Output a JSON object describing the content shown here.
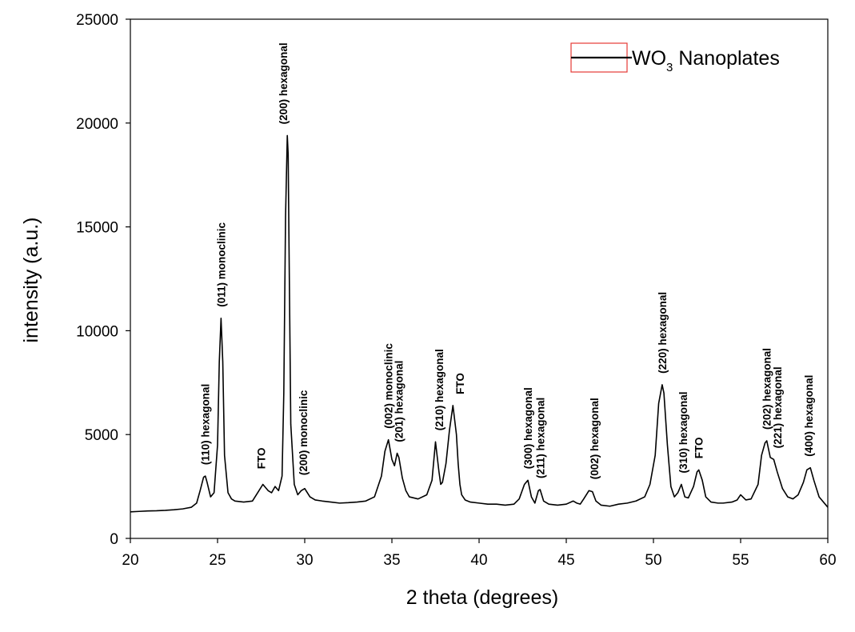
{
  "chart_data": {
    "type": "line",
    "title": "",
    "xlabel": "2 theta (degrees)",
    "ylabel": "intensity (a.u.)",
    "xlim": [
      20,
      60
    ],
    "ylim": [
      0,
      25000
    ],
    "xticks": [
      20,
      25,
      30,
      35,
      40,
      45,
      50,
      55,
      60
    ],
    "yticks": [
      0,
      5000,
      10000,
      15000,
      20000,
      25000
    ],
    "grid": false,
    "legend_position": "top-right",
    "line_color": "#000000",
    "legend_box_color": "#e53935",
    "series": [
      {
        "name": "WO3 Nanoplates",
        "x": [
          20.0,
          20.5,
          21.0,
          21.5,
          22.0,
          22.5,
          23.0,
          23.5,
          23.8,
          24.0,
          24.2,
          24.3,
          24.4,
          24.6,
          24.8,
          25.0,
          25.1,
          25.2,
          25.3,
          25.4,
          25.6,
          25.8,
          26.0,
          26.5,
          27.0,
          27.3,
          27.6,
          27.9,
          28.1,
          28.3,
          28.5,
          28.7,
          28.8,
          28.9,
          29.0,
          29.05,
          29.1,
          29.2,
          29.4,
          29.6,
          29.8,
          30.0,
          30.3,
          30.6,
          31.0,
          31.5,
          32.0,
          32.5,
          33.0,
          33.5,
          34.0,
          34.4,
          34.6,
          34.8,
          35.0,
          35.15,
          35.3,
          35.4,
          35.6,
          35.8,
          36.0,
          36.5,
          37.0,
          37.3,
          37.5,
          37.7,
          37.8,
          37.9,
          38.1,
          38.3,
          38.5,
          38.7,
          38.8,
          38.9,
          39.0,
          39.2,
          39.5,
          40.0,
          40.5,
          41.0,
          41.5,
          42.0,
          42.3,
          42.6,
          42.8,
          43.0,
          43.2,
          43.4,
          43.5,
          43.7,
          44.0,
          44.5,
          45.0,
          45.4,
          45.6,
          45.8,
          46.0,
          46.3,
          46.5,
          46.7,
          47.0,
          47.5,
          48.0,
          48.5,
          49.0,
          49.5,
          49.8,
          50.1,
          50.3,
          50.5,
          50.6,
          50.8,
          51.0,
          51.2,
          51.4,
          51.6,
          51.8,
          52.0,
          52.3,
          52.5,
          52.6,
          52.8,
          53.0,
          53.3,
          53.7,
          54.0,
          54.5,
          54.8,
          55.0,
          55.3,
          55.6,
          56.0,
          56.2,
          56.4,
          56.5,
          56.7,
          56.9,
          57.1,
          57.4,
          57.7,
          58.0,
          58.3,
          58.6,
          58.8,
          59.0,
          59.2,
          59.5,
          60.0
        ],
        "values": [
          1280,
          1300,
          1320,
          1330,
          1350,
          1380,
          1420,
          1500,
          1700,
          2300,
          2950,
          3000,
          2700,
          2000,
          2200,
          4500,
          8500,
          10600,
          8500,
          4000,
          2200,
          1900,
          1800,
          1750,
          1800,
          2200,
          2600,
          2300,
          2200,
          2500,
          2300,
          3000,
          7000,
          15500,
          19400,
          18500,
          14000,
          5500,
          2600,
          2100,
          2300,
          2400,
          2000,
          1850,
          1800,
          1750,
          1700,
          1720,
          1750,
          1800,
          2000,
          3000,
          4200,
          4750,
          3800,
          3500,
          4100,
          3900,
          2900,
          2300,
          2000,
          1900,
          2100,
          2800,
          4650,
          3200,
          2600,
          2700,
          3600,
          5200,
          6400,
          5000,
          3600,
          2600,
          2100,
          1850,
          1750,
          1700,
          1650,
          1650,
          1600,
          1650,
          1900,
          2600,
          2800,
          2000,
          1700,
          2300,
          2350,
          1800,
          1650,
          1600,
          1650,
          1800,
          1700,
          1650,
          1900,
          2300,
          2250,
          1800,
          1600,
          1550,
          1650,
          1700,
          1800,
          2000,
          2600,
          4000,
          6500,
          7400,
          7000,
          4500,
          2500,
          2000,
          2200,
          2600,
          2000,
          1950,
          2500,
          3200,
          3300,
          2800,
          2000,
          1750,
          1700,
          1700,
          1750,
          1850,
          2100,
          1850,
          1900,
          2600,
          4000,
          4600,
          4700,
          3900,
          3800,
          3200,
          2400,
          2000,
          1900,
          2100,
          2700,
          3300,
          3400,
          2800,
          2000,
          1500
        ]
      }
    ],
    "annotations": [
      {
        "text": "(110)  hexagonal",
        "x": 24.3,
        "y": 3000
      },
      {
        "text": "(011) monoclinic",
        "x": 25.2,
        "y": 10600
      },
      {
        "text": "FTO",
        "x": 27.5,
        "y": 2800
      },
      {
        "text": "(200)  hexagonal",
        "x": 28.75,
        "y": 19400
      },
      {
        "text": "(200) monoclinic",
        "x": 29.9,
        "y": 2500
      },
      {
        "text": "(002) monoclinic",
        "x": 34.8,
        "y": 4750
      },
      {
        "text": "(201) hexagonal",
        "x": 35.4,
        "y": 4100
      },
      {
        "text": "(210) hexagonal",
        "x": 37.7,
        "y": 4650
      },
      {
        "text": "FTO",
        "x": 38.9,
        "y": 6400
      },
      {
        "text": "(300) hexagonal",
        "x": 42.8,
        "y": 2800
      },
      {
        "text": "(211) hexagonal",
        "x": 43.5,
        "y": 2350
      },
      {
        "text": "(002) hexagonal",
        "x": 46.6,
        "y": 2300
      },
      {
        "text": "(220) hexagonal",
        "x": 50.5,
        "y": 7400
      },
      {
        "text": "(310) hexagonal",
        "x": 51.7,
        "y": 2600
      },
      {
        "text": "FTO",
        "x": 52.6,
        "y": 3300
      },
      {
        "text": "(202) hexagonal",
        "x": 56.5,
        "y": 4700
      },
      {
        "text": "(221) hexagonal",
        "x": 57.1,
        "y": 3800
      },
      {
        "text": "(400) hexagonal",
        "x": 58.9,
        "y": 3400
      }
    ]
  },
  "legend": {
    "label_main": "WO",
    "label_sub": "3",
    "label_rest": " Nanoplates"
  }
}
